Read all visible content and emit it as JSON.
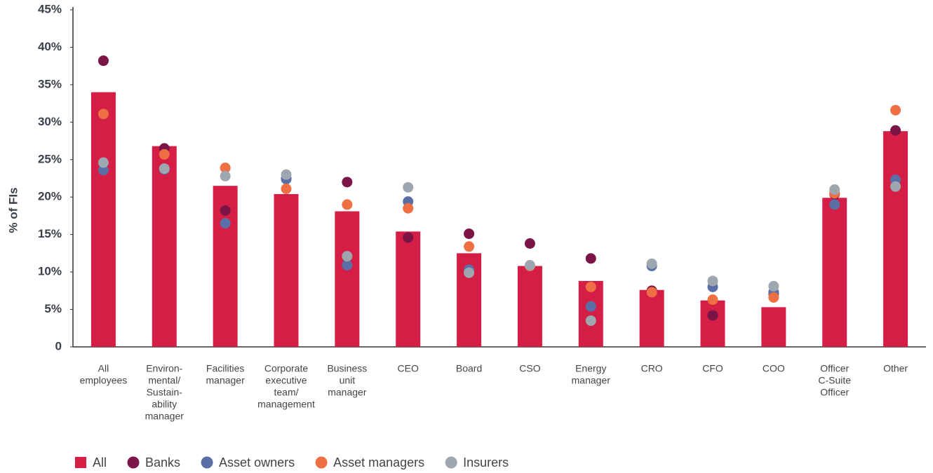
{
  "chart_data": {
    "type": "bar",
    "y_label": "% of FIs",
    "categories": [
      [
        "All",
        "employees"
      ],
      [
        "Environ-",
        "mental/",
        "Sustain-",
        "ability",
        "manager"
      ],
      [
        "Facilities",
        "manager"
      ],
      [
        "Corporate",
        "executive",
        "team/",
        "management"
      ],
      [
        "Business",
        "unit",
        "manager"
      ],
      [
        "CEO"
      ],
      [
        "Board"
      ],
      [
        "CSO"
      ],
      [
        "Energy",
        "manager"
      ],
      [
        "CRO"
      ],
      [
        "CFO"
      ],
      [
        "COO"
      ],
      [
        "Officer",
        "C-Suite",
        "Officer"
      ],
      [
        "Other"
      ]
    ],
    "series": [
      {
        "name": "All",
        "type": "bar",
        "color": "#d51e45",
        "values": [
          34.0,
          26.8,
          21.5,
          20.4,
          18.1,
          15.4,
          12.5,
          10.8,
          8.8,
          7.6,
          6.2,
          5.3,
          19.9,
          28.8
        ]
      },
      {
        "name": "Banks",
        "type": "scatter",
        "color": "#7b1548",
        "values": [
          38.2,
          26.5,
          18.2,
          22.5,
          22.0,
          14.6,
          15.1,
          13.8,
          11.8,
          7.5,
          4.2,
          7.1,
          20.4,
          28.9
        ]
      },
      {
        "name": "Asset owners",
        "type": "scatter",
        "color": "#5a6fa6",
        "values": [
          23.6,
          23.7,
          16.5,
          22.4,
          10.9,
          19.4,
          10.3,
          10.8,
          5.4,
          10.8,
          8.0,
          7.3,
          19.0,
          22.3
        ]
      },
      {
        "name": "Asset managers",
        "type": "scatter",
        "color": "#ef6f45",
        "values": [
          31.1,
          25.7,
          23.9,
          21.1,
          19.0,
          18.5,
          13.4,
          10.8,
          8.0,
          7.3,
          6.3,
          6.6,
          20.5,
          31.6
        ]
      },
      {
        "name": "Insurers",
        "type": "scatter",
        "color": "#9ea7b0",
        "values": [
          24.6,
          23.8,
          22.8,
          23.0,
          12.1,
          21.3,
          9.9,
          10.9,
          3.5,
          11.1,
          8.8,
          8.1,
          21.0,
          21.4
        ]
      }
    ],
    "ylim": [
      0,
      45
    ],
    "yticks": [
      0,
      {
        "value": 5,
        "label": "5%"
      },
      {
        "value": 10,
        "label": "10%"
      },
      {
        "value": 15,
        "label": "15%"
      },
      {
        "value": 20,
        "label": "20%"
      },
      {
        "value": 25,
        "label": "25%"
      },
      {
        "value": 30,
        "label": "30%"
      },
      {
        "value": 35,
        "label": "35%"
      },
      {
        "value": 40,
        "label": "40%"
      },
      {
        "value": 45,
        "label": "45%"
      }
    ],
    "legend": "bottom-left"
  }
}
